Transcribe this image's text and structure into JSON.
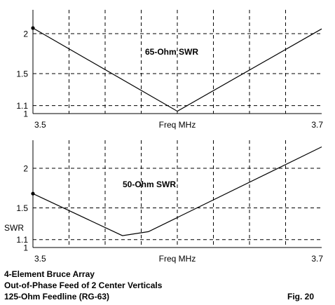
{
  "chart_data": [
    {
      "type": "line",
      "title": "65-Ohm SWR",
      "xlabel": "Freq MHz",
      "ylabel": "",
      "xlim": [
        3.5,
        3.7
      ],
      "ylim": [
        1,
        2.25
      ],
      "x_tick_labels": [
        "3.5",
        "3.7"
      ],
      "y_ticks": [
        1,
        1.1,
        1.5,
        2
      ],
      "y_tick_labels": [
        "1",
        "1.1",
        "1.5",
        "2"
      ],
      "grid": true,
      "series": [
        {
          "x": [
            3.5,
            3.6,
            3.7
          ],
          "y": [
            2.07,
            1.03,
            2.06
          ]
        }
      ]
    },
    {
      "type": "line",
      "title": "50-Ohm SWR",
      "xlabel": "Freq MHz",
      "ylabel": "SWR",
      "xlim": [
        3.5,
        3.7
      ],
      "ylim": [
        1,
        2.25
      ],
      "x_tick_labels": [
        "3.5",
        "3.7"
      ],
      "y_ticks": [
        1,
        1.1,
        1.5,
        2
      ],
      "y_tick_labels": [
        "1",
        "1.1",
        "1.5",
        "2"
      ],
      "grid": true,
      "series": [
        {
          "x": [
            3.5,
            3.562,
            3.58,
            3.7
          ],
          "y": [
            1.68,
            1.15,
            1.2,
            2.27
          ]
        }
      ]
    }
  ],
  "caption": {
    "line1": "4-Element Bruce Array",
    "line2": "Out-of-Phase Feed of 2 Center Verticals",
    "line3": "125-Ohm Feedline (RG-63)",
    "fig_label": "Fig. 20"
  }
}
